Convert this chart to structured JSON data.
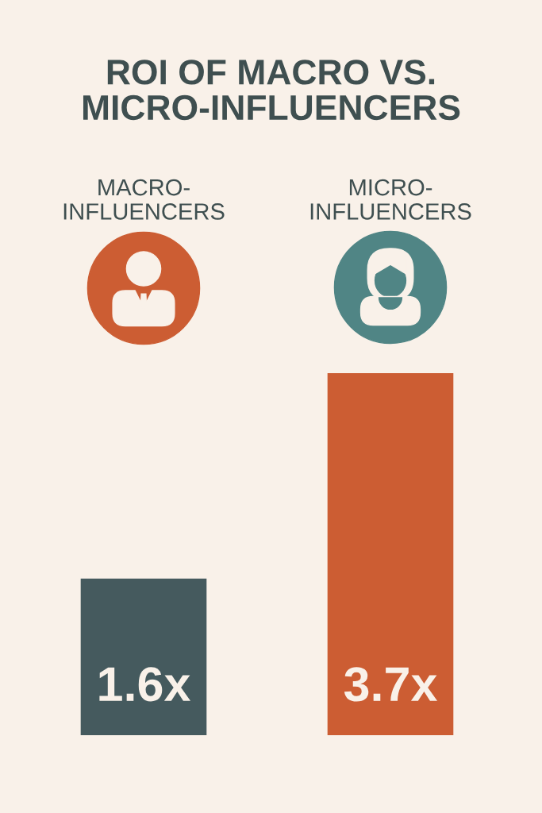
{
  "chart_data": {
    "type": "bar",
    "title": "ROI OF MACRO VS.\nMICRO-INFLUENCERS",
    "categories": [
      "MACRO-\nINFLUENCERS",
      "MICRO-\nINFLUENCERS"
    ],
    "values": [
      1.6,
      3.7
    ],
    "colors": [
      "#455a5e",
      "#cc5d33"
    ],
    "value_labels": [
      "1.6x",
      "3.7x"
    ],
    "tick_labels": "x"
  }
}
